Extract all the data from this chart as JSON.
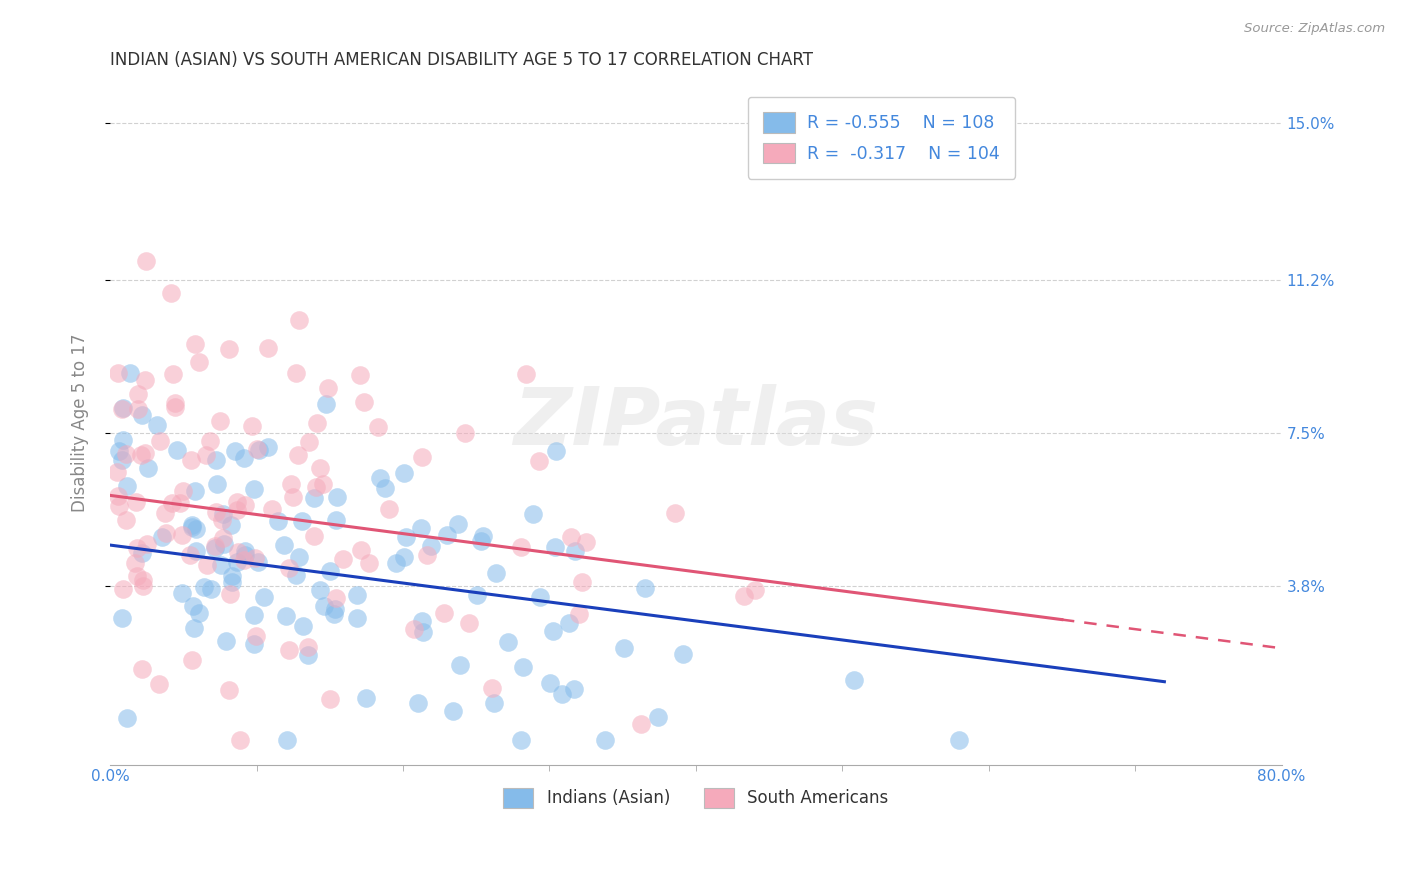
{
  "title": "INDIAN (ASIAN) VS SOUTH AMERICAN DISABILITY AGE 5 TO 17 CORRELATION CHART",
  "source": "Source: ZipAtlas.com",
  "ylabel": "Disability Age 5 to 17",
  "ytick_labels_right": [
    "3.8%",
    "7.5%",
    "11.2%",
    "15.0%"
  ],
  "ytick_values": [
    0.038,
    0.075,
    0.112,
    0.15
  ],
  "xlim": [
    0.0,
    0.8
  ],
  "ylim": [
    -0.005,
    0.16
  ],
  "legend_r1": "R = -0.555",
  "legend_n1": "N = 108",
  "legend_r2": "R =  -0.317",
  "legend_n2": "N = 104",
  "blue_color": "#85BBEA",
  "pink_color": "#F5AABB",
  "line_blue": "#1A3FBB",
  "line_pink": "#E05575",
  "watermark": "ZIPatlas",
  "background_color": "#FFFFFF",
  "grid_color": "#CCCCCC",
  "right_label_color": "#4488DD",
  "title_color": "#333333",
  "axis_color": "#888888",
  "source_color": "#999999",
  "N_blue": 108,
  "N_pink": 104
}
